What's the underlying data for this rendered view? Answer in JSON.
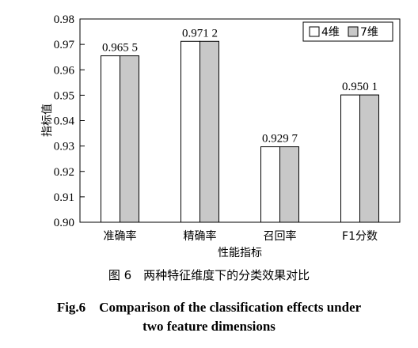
{
  "chart_data": {
    "type": "bar",
    "categories": [
      "准确率",
      "精确率",
      "召回率",
      "F1分数"
    ],
    "series": [
      {
        "name": "4维",
        "values": [
          0.9655,
          0.9712,
          0.9297,
          0.9501
        ],
        "color": "#ffffff"
      },
      {
        "name": "7维",
        "values": [
          0.9655,
          0.9712,
          0.9297,
          0.9501
        ],
        "color": "#c8c8c8"
      }
    ],
    "data_labels": [
      "0.965 5",
      "0.971 2",
      "0.929 7",
      "0.950 1"
    ],
    "xlabel": "性能指标",
    "ylabel": "指标值",
    "ylim": [
      0.9,
      0.98
    ],
    "yticks": [
      0.9,
      0.91,
      0.92,
      0.93,
      0.94,
      0.95,
      0.96,
      0.97,
      0.98
    ],
    "ytick_labels": [
      "0.90",
      "0.91",
      "0.92",
      "0.93",
      "0.94",
      "0.95",
      "0.96",
      "0.97",
      "0.98"
    ],
    "legend_position": "top-right",
    "grid": false
  },
  "caption": {
    "chinese": "图 6　两种特征维度下的分类效果对比",
    "english_line1": "Fig.6　Comparison of the classification effects under",
    "english_line2": "two feature dimensions"
  }
}
